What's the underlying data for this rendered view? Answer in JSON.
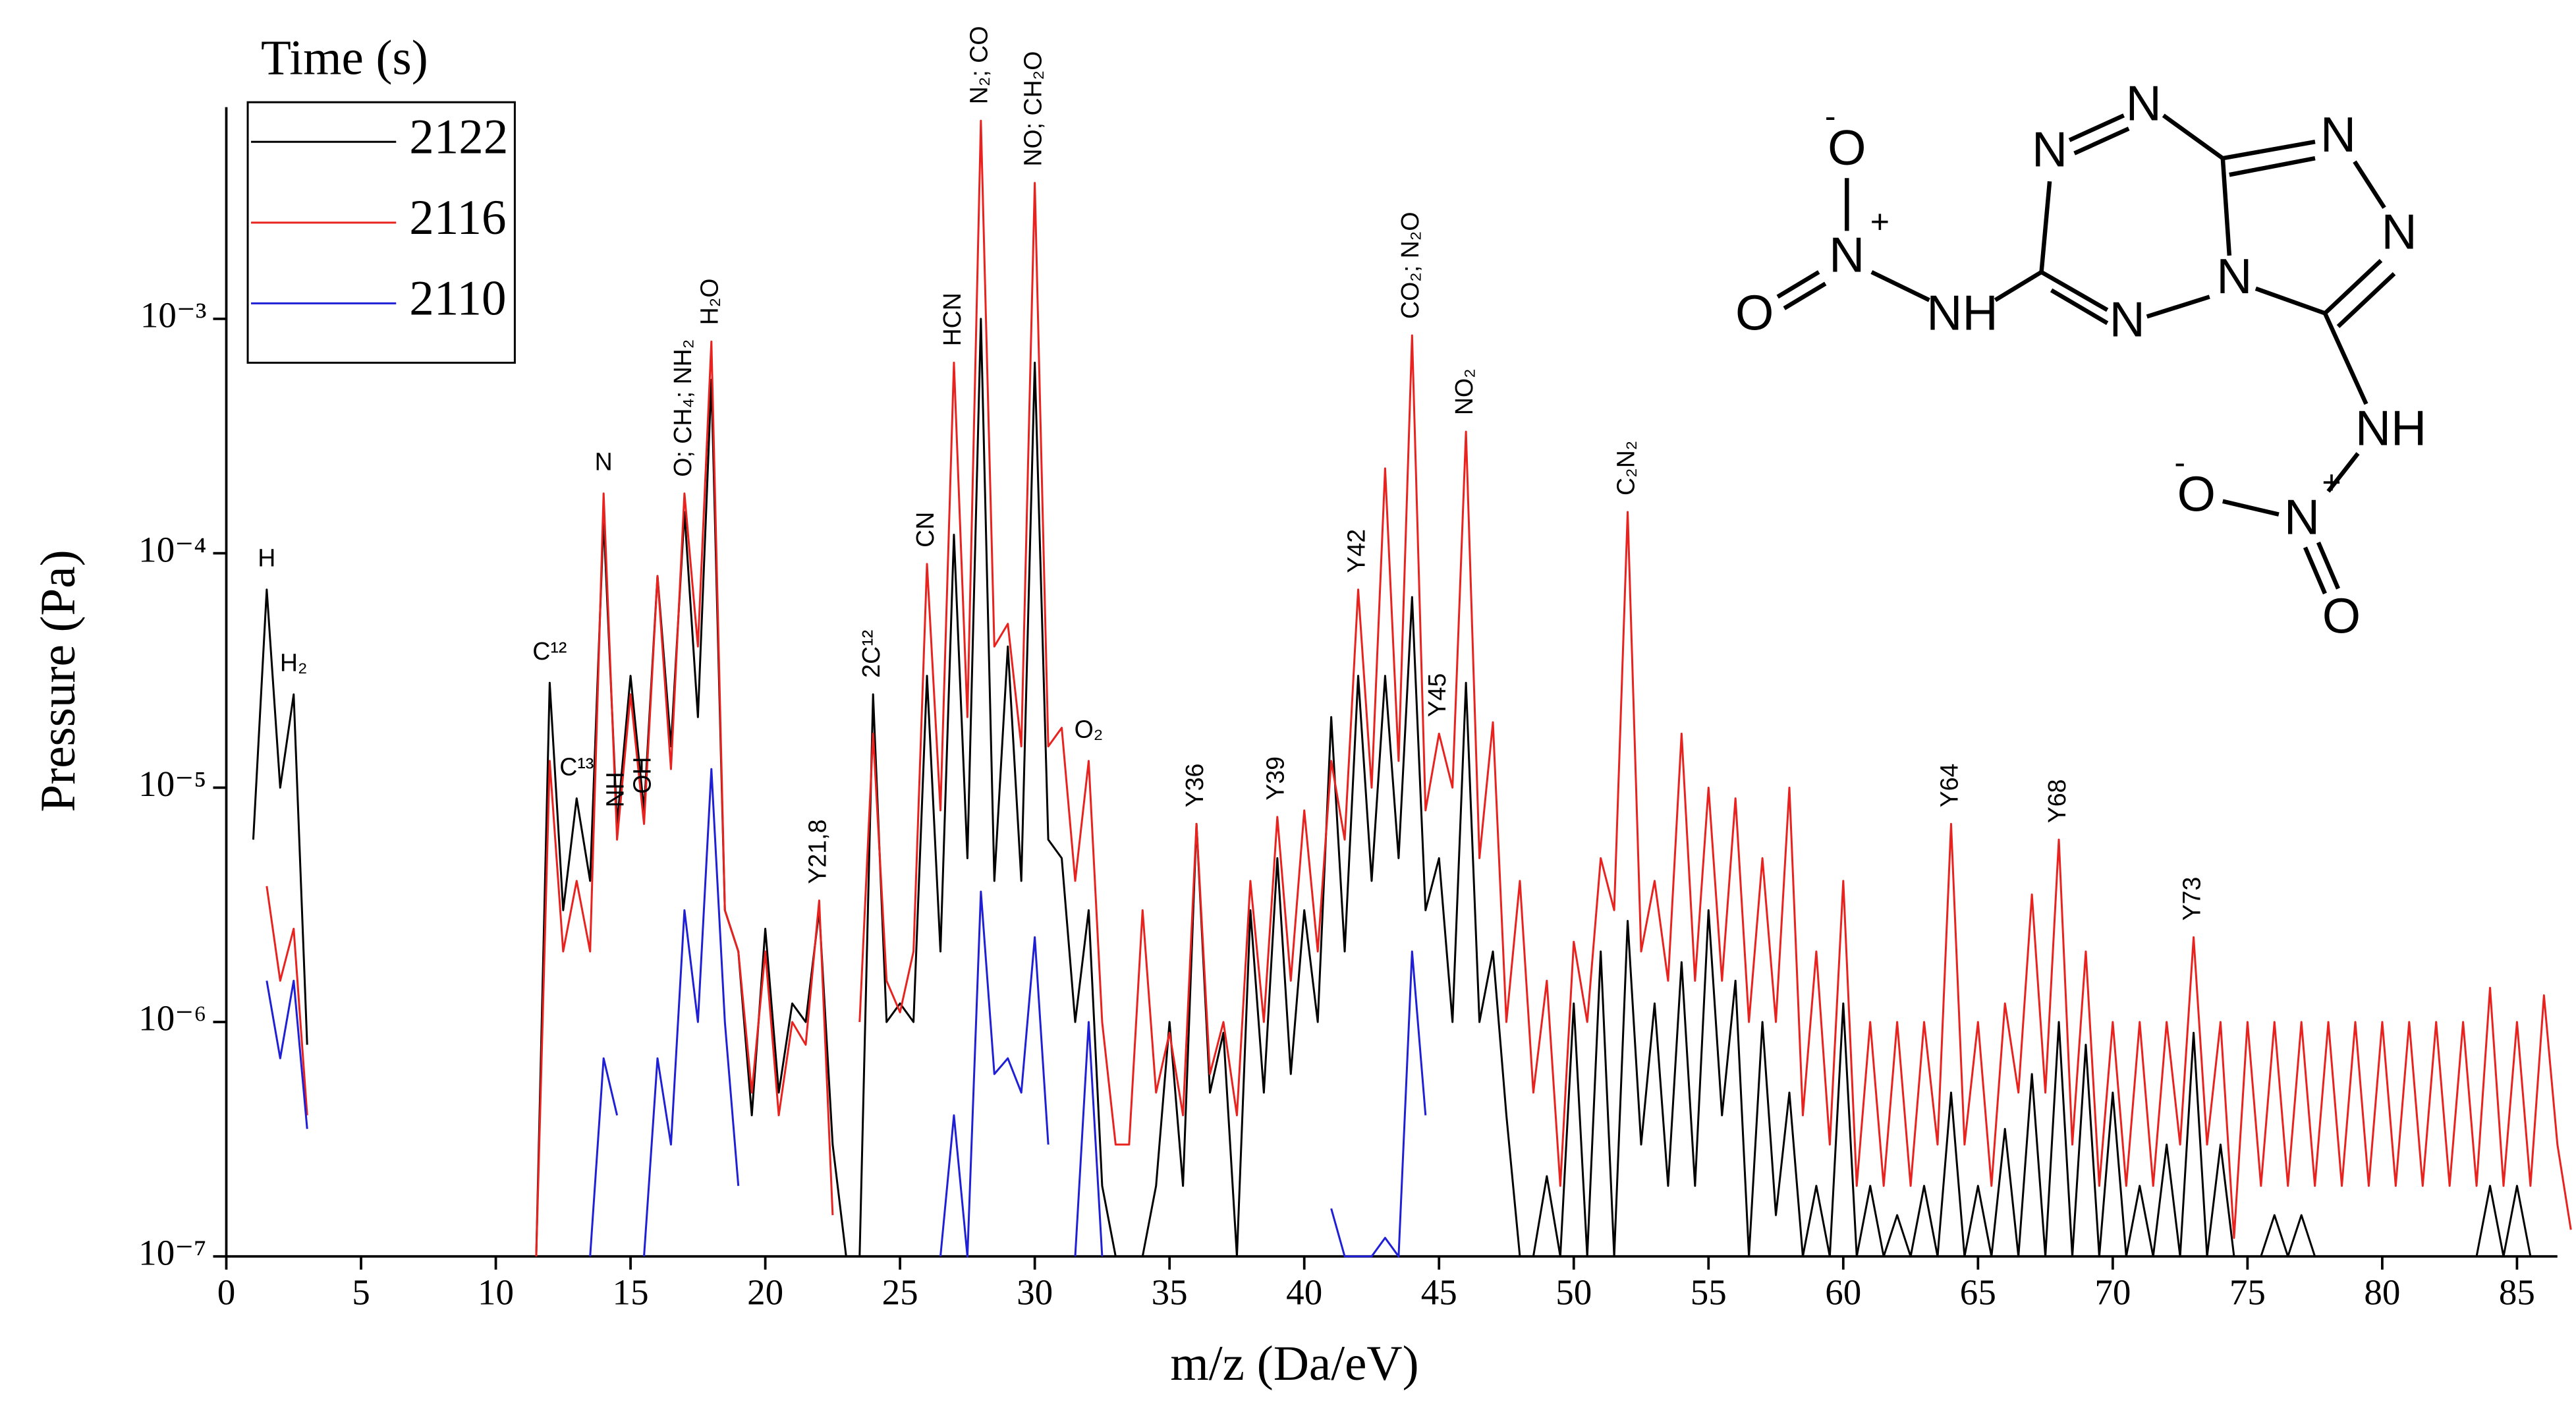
{
  "chart_data": {
    "type": "line",
    "log_y": true,
    "x_label": "m/z (Da/eV)",
    "y_label": "Pressure (Pa)",
    "xlim": [
      0,
      86.5
    ],
    "xticks": [
      0,
      5,
      10,
      15,
      20,
      25,
      30,
      35,
      40,
      45,
      50,
      55,
      60,
      65,
      70,
      75,
      80,
      85
    ],
    "ylim": [
      1e-07,
      0.008
    ],
    "yticks": [
      {
        "value": 1e-07,
        "label": "10⁻⁷"
      },
      {
        "value": 1e-06,
        "label": "10⁻⁶"
      },
      {
        "value": 1e-05,
        "label": "10⁻⁵"
      },
      {
        "value": 0.0001,
        "label": "10⁻⁴"
      },
      {
        "value": 0.001,
        "label": "10⁻³"
      }
    ],
    "legend": "upper left",
    "legend_title": "Time (s)",
    "x": [
      1,
      1.5,
      2,
      2.5,
      3,
      3.5,
      4,
      4.5,
      5,
      5.5,
      6,
      6.5,
      7,
      7.5,
      8,
      8.5,
      9,
      9.5,
      10,
      10.5,
      11,
      11.5,
      12,
      12.5,
      13,
      13.5,
      14,
      14.5,
      15,
      15.5,
      16,
      16.5,
      17,
      17.5,
      18,
      18.5,
      19,
      19.5,
      20,
      20.5,
      21,
      21.5,
      22,
      22.5,
      23,
      23.5,
      24,
      24.5,
      25,
      25.5,
      26,
      26.5,
      27,
      27.5,
      28,
      28.5,
      29,
      29.5,
      30,
      30.5,
      31,
      31.5,
      32,
      32.5,
      33,
      33.5,
      34,
      34.5,
      35,
      35.5,
      36,
      36.5,
      37,
      37.5,
      38,
      38.5,
      39,
      39.5,
      40,
      40.5,
      41,
      41.5,
      42,
      42.5,
      43,
      43.5,
      44,
      44.5,
      45,
      45.5,
      46,
      46.5,
      47,
      47.5,
      48,
      48.5,
      49,
      49.5,
      50,
      50.5,
      51,
      51.5,
      52,
      52.5,
      53,
      53.5,
      54,
      54.5,
      55,
      55.5,
      56,
      56.5,
      57,
      57.5,
      58,
      58.5,
      59,
      59.5,
      60,
      60.5,
      61,
      61.5,
      62,
      62.5,
      63,
      63.5,
      64,
      64.5,
      65,
      65.5,
      66,
      66.5,
      67,
      67.5,
      68,
      68.5,
      69,
      69.5,
      70,
      70.5,
      71,
      71.5,
      72,
      72.5,
      73,
      73.5,
      74,
      74.5,
      75,
      75.5,
      76,
      76.5,
      77,
      77.5,
      78,
      78.5,
      79,
      79.5,
      80,
      80.5,
      81,
      81.5,
      82,
      82.5,
      83,
      83.5,
      84,
      84.5,
      85,
      85.5,
      86,
      86.5,
      87
    ],
    "series": [
      {
        "name": "2122",
        "color": "#000000",
        "values": [
          6e-06,
          7e-05,
          1e-05,
          2.5e-05,
          8e-07,
          null,
          null,
          null,
          null,
          null,
          null,
          null,
          null,
          null,
          null,
          null,
          null,
          null,
          null,
          null,
          null,
          1e-07,
          2.8e-05,
          3e-06,
          9e-06,
          4e-06,
          0.00014,
          7e-06,
          3e-05,
          8e-06,
          8e-05,
          1.5e-05,
          0.00015,
          2e-05,
          0.00055,
          3e-06,
          2e-06,
          4e-07,
          2.5e-06,
          5e-07,
          1.2e-06,
          1e-06,
          3e-06,
          3e-07,
          1e-07,
          1e-07,
          2.5e-05,
          1e-06,
          1.2e-06,
          1e-06,
          3e-05,
          2e-06,
          0.00012,
          5e-06,
          0.001,
          4e-06,
          4e-05,
          4e-06,
          0.00065,
          6e-06,
          5e-06,
          1e-06,
          3e-06,
          2e-07,
          1e-07,
          1e-07,
          1e-07,
          2e-07,
          1e-06,
          2e-07,
          7e-06,
          5e-07,
          9e-07,
          1e-07,
          3e-06,
          5e-07,
          5e-06,
          6e-07,
          3e-06,
          1e-06,
          2e-05,
          2e-06,
          3e-05,
          4e-06,
          3e-05,
          5e-06,
          6.5e-05,
          3e-06,
          5e-06,
          1e-06,
          2.8e-05,
          1e-06,
          2e-06,
          4e-07,
          1e-07,
          1e-07,
          2.2e-07,
          1e-07,
          1.2e-06,
          1e-07,
          2e-06,
          1e-07,
          2.7e-06,
          3e-07,
          1.2e-06,
          2e-07,
          1.8e-06,
          2e-07,
          3e-06,
          4e-07,
          1.5e-06,
          1e-07,
          1e-06,
          1.5e-07,
          5e-07,
          1e-07,
          2e-07,
          1e-07,
          1.2e-06,
          1e-07,
          2e-07,
          1e-07,
          1.5e-07,
          1e-07,
          2e-07,
          1e-07,
          5e-07,
          1e-07,
          2e-07,
          1e-07,
          3.5e-07,
          1e-07,
          6e-07,
          1e-07,
          1e-06,
          1e-07,
          8e-07,
          1e-07,
          5e-07,
          1e-07,
          2e-07,
          1e-07,
          3e-07,
          1e-07,
          9e-07,
          1e-07,
          3e-07,
          1e-07,
          1e-07,
          1e-07,
          1.5e-07,
          1e-07,
          1.5e-07,
          1e-07,
          1e-07,
          1e-07,
          1e-07,
          1e-07,
          1e-07,
          1e-07,
          1e-07,
          1e-07,
          1e-07,
          1e-07,
          1e-07,
          1e-07,
          2e-07,
          1e-07,
          2e-07,
          1e-07,
          null,
          null,
          null
        ]
      },
      {
        "name": "2116",
        "color": "#e8231f",
        "values": [
          null,
          3.8e-06,
          1.5e-06,
          2.5e-06,
          4e-07,
          null,
          null,
          null,
          null,
          null,
          null,
          null,
          null,
          null,
          null,
          null,
          null,
          null,
          null,
          null,
          null,
          1e-07,
          1.3e-05,
          2e-06,
          4e-06,
          2e-06,
          0.00018,
          6e-06,
          2.5e-05,
          7e-06,
          8e-05,
          1.2e-05,
          0.00018,
          4e-05,
          0.0008,
          3e-06,
          2e-06,
          5e-07,
          2e-06,
          4e-07,
          1e-06,
          8e-07,
          3.3e-06,
          1.5e-07,
          null,
          1e-06,
          1.7e-05,
          1.5e-06,
          1.1e-06,
          2e-06,
          9e-05,
          8e-06,
          0.00065,
          2e-05,
          0.007,
          4e-05,
          5e-05,
          1.5e-05,
          0.0038,
          1.5e-05,
          1.8e-05,
          4e-06,
          1.3e-05,
          1e-06,
          3e-07,
          3e-07,
          3e-06,
          5e-07,
          9e-07,
          4e-07,
          7e-06,
          6e-07,
          1e-06,
          4e-07,
          4e-06,
          1e-06,
          7.5e-06,
          1.5e-06,
          8e-06,
          2e-06,
          1.3e-05,
          6e-06,
          7e-05,
          1e-05,
          0.00023,
          1.3e-05,
          0.00085,
          8e-06,
          1.7e-05,
          1e-05,
          0.00033,
          5e-06,
          1.9e-05,
          1e-06,
          4e-06,
          5e-07,
          1.5e-06,
          2e-07,
          2.2e-06,
          1e-06,
          5e-06,
          3e-06,
          0.00015,
          2e-06,
          4e-06,
          1.5e-06,
          1.7e-05,
          1.5e-06,
          1e-05,
          1.5e-06,
          9e-06,
          1e-06,
          5e-06,
          1e-06,
          1e-05,
          4e-07,
          2e-06,
          3e-07,
          4e-06,
          2e-07,
          1e-06,
          2e-07,
          1e-06,
          2e-07,
          1e-06,
          3e-07,
          7e-06,
          3e-07,
          1e-06,
          2e-07,
          1.2e-06,
          5e-07,
          3.5e-06,
          5e-07,
          6e-06,
          3e-07,
          2e-06,
          2e-07,
          1e-06,
          2e-07,
          1e-06,
          2e-07,
          1e-06,
          3e-07,
          2.3e-06,
          3e-07,
          1e-06,
          1.2e-07,
          1e-06,
          2e-07,
          1e-06,
          2e-07,
          1e-06,
          2e-07,
          1e-06,
          2e-07,
          1e-06,
          2e-07,
          1e-06,
          2e-07,
          1e-06,
          2e-07,
          1e-06,
          2e-07,
          1e-06,
          2e-07,
          1.4e-06,
          2e-07,
          1e-06,
          2e-07,
          1.3e-06,
          3e-07,
          1.3e-07
        ]
      },
      {
        "name": "2110",
        "color": "#1f1fd6",
        "values": [
          null,
          1.5e-06,
          7e-07,
          1.5e-06,
          3.5e-07,
          null,
          null,
          null,
          null,
          null,
          null,
          null,
          null,
          null,
          null,
          null,
          null,
          null,
          null,
          null,
          null,
          null,
          null,
          null,
          null,
          1e-07,
          7e-07,
          4e-07,
          null,
          1e-07,
          7e-07,
          3e-07,
          3e-06,
          1e-06,
          1.2e-05,
          1e-06,
          2e-07,
          null,
          null,
          null,
          null,
          null,
          null,
          null,
          null,
          null,
          null,
          null,
          null,
          null,
          null,
          1e-07,
          4e-07,
          1e-07,
          3.6e-06,
          6e-07,
          7e-07,
          5e-07,
          2.3e-06,
          3e-07,
          null,
          1e-07,
          1e-06,
          1e-07,
          null,
          null,
          null,
          null,
          null,
          null,
          null,
          null,
          null,
          null,
          null,
          null,
          null,
          null,
          null,
          null,
          1.6e-07,
          1e-07,
          1e-07,
          1e-07,
          1.2e-07,
          1e-07,
          2e-06,
          4e-07,
          null,
          null,
          null,
          null,
          null,
          null,
          null,
          null,
          null,
          null,
          null,
          null,
          null,
          null,
          null,
          null,
          null,
          null,
          null,
          null,
          null,
          null,
          null,
          null,
          null,
          null,
          null,
          null,
          null,
          null,
          null,
          null,
          null,
          null,
          null,
          null,
          null,
          null,
          null,
          null,
          null,
          null,
          null,
          null,
          null,
          null,
          null,
          null,
          null,
          null,
          null,
          null,
          null,
          null,
          null,
          null,
          null,
          null,
          null,
          null,
          null,
          null,
          null,
          null,
          null,
          null,
          null,
          null,
          null,
          null,
          null,
          null,
          null,
          null,
          null,
          null,
          null,
          null,
          null,
          null,
          null,
          null,
          null,
          null,
          null
        ]
      }
    ],
    "annotations": [
      {
        "text": "H",
        "x": 1.5,
        "vertical": false
      },
      {
        "text": "H₂",
        "x": 2.5,
        "vertical": false
      },
      {
        "text": "C¹²",
        "x": 12,
        "vertical": false
      },
      {
        "text": "C¹³",
        "x": 13,
        "vertical": false
      },
      {
        "text": "N",
        "x": 14,
        "vertical": false
      },
      {
        "text": "NH",
        "x": 14.5,
        "vertical": true
      },
      {
        "text": "OH",
        "x": 15.5,
        "vertical": true
      },
      {
        "text": "O; CH₄; NH₂",
        "x": 17,
        "vertical": true
      },
      {
        "text": "H₂O",
        "x": 18,
        "vertical": true
      },
      {
        "text": "Y21,8",
        "x": 22,
        "vertical": true
      },
      {
        "text": "2C¹²",
        "x": 24,
        "vertical": true
      },
      {
        "text": "CN",
        "x": 26,
        "vertical": true
      },
      {
        "text": "HCN",
        "x": 27,
        "vertical": true
      },
      {
        "text": "N₂; CO",
        "x": 28,
        "vertical": true
      },
      {
        "text": "NO; CH₂O",
        "x": 30,
        "vertical": true
      },
      {
        "text": "O₂",
        "x": 32,
        "vertical": false
      },
      {
        "text": "Y36",
        "x": 36,
        "vertical": true
      },
      {
        "text": "Y39",
        "x": 39,
        "vertical": true
      },
      {
        "text": "Y42",
        "x": 42,
        "vertical": true
      },
      {
        "text": "CO₂; N₂O",
        "x": 44,
        "vertical": true
      },
      {
        "text": "Y45",
        "x": 45,
        "vertical": true
      },
      {
        "text": "NO₂",
        "x": 46,
        "vertical": true
      },
      {
        "text": "C₂N₂",
        "x": 52,
        "vertical": true
      },
      {
        "text": "Y64",
        "x": 64,
        "vertical": true
      },
      {
        "text": "Y68",
        "x": 68,
        "vertical": true
      },
      {
        "text": "Y73",
        "x": 73,
        "vertical": true
      }
    ]
  },
  "structure": {
    "atoms": [
      "O",
      "-",
      "N",
      "+",
      "O",
      "NH",
      "N",
      "N",
      "N",
      "N",
      "N",
      "N",
      "NH",
      "O",
      "-",
      "N",
      "+",
      "O"
    ]
  }
}
